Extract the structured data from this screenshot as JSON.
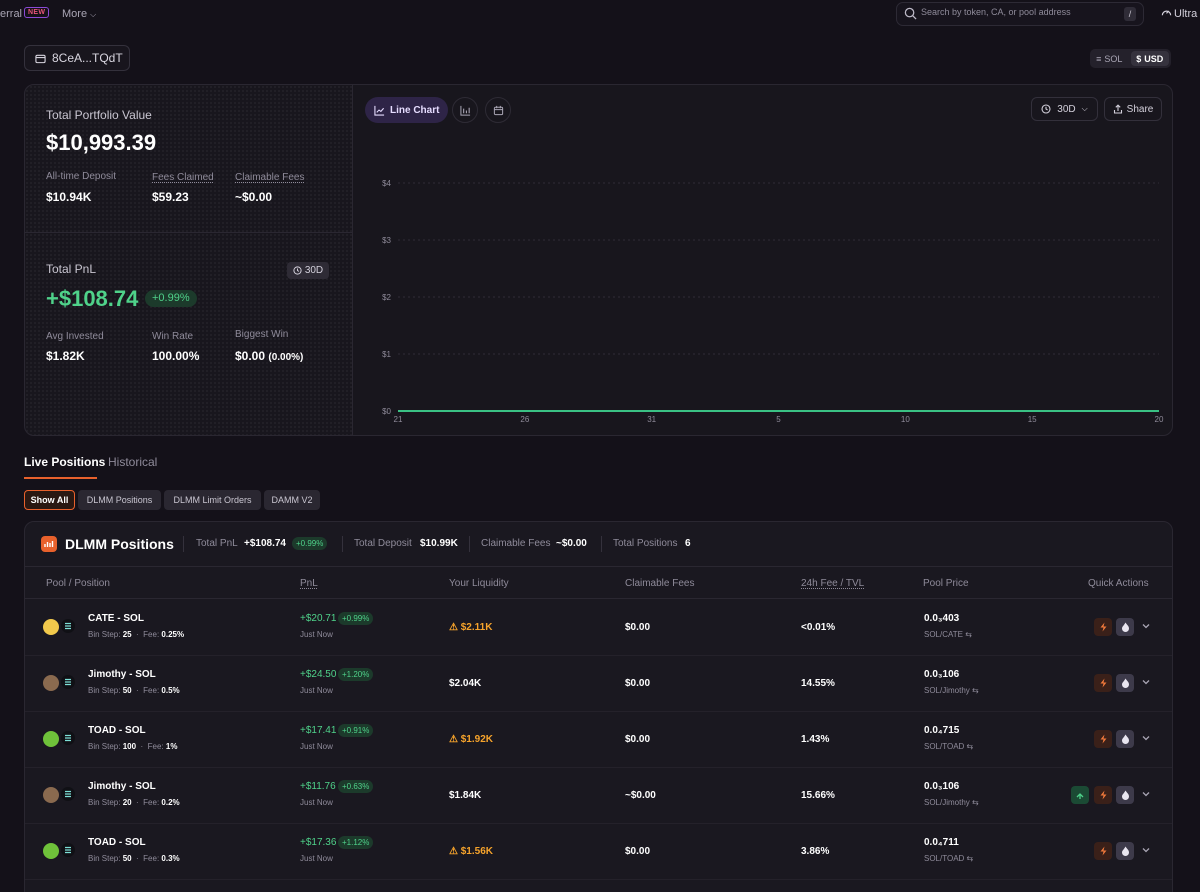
{
  "nav": {
    "referral_label": "erral",
    "new_badge": "NEW",
    "more_label": "More",
    "search_placeholder": "Search by token, CA, or pool address",
    "search_shortcut": "/",
    "ultra_label": "Ultra"
  },
  "wallet": {
    "address": "8CeA...TQdT"
  },
  "currency": {
    "options": [
      "SOL",
      "USD"
    ],
    "selected": "USD"
  },
  "portfolio": {
    "total_value_label": "Total Portfolio Value",
    "total_value": "$10,993.39",
    "deposit_label": "All-time Deposit",
    "deposit": "$10.94K",
    "fees_claimed_label": "Fees Claimed",
    "fees_claimed": "$59.23",
    "claimable_label": "Claimable Fees",
    "claimable": "~$0.00",
    "pnl_label": "Total PnL",
    "pnl_period": "30D",
    "pnl": "+$108.74",
    "pnl_pct": "+0.99%",
    "avg_invested_label": "Avg Invested",
    "avg_invested": "$1.82K",
    "win_rate_label": "Win Rate",
    "win_rate": "100.00%",
    "biggest_win_label": "Biggest Win",
    "biggest_win": "$0.00",
    "biggest_win_pct": "(0.00%)"
  },
  "chart_toolbar": {
    "line_chart_label": "Line Chart",
    "period": "30D",
    "share_label": "Share"
  },
  "chart_data": {
    "type": "line",
    "title": "",
    "xlabel": "",
    "ylabel": "",
    "x": [
      "21",
      "26",
      "31",
      "5",
      "10",
      "15",
      "20"
    ],
    "y_ticks": [
      "$0",
      "$1",
      "$2",
      "$3",
      "$4"
    ],
    "ylim": [
      0,
      4
    ],
    "grid": true,
    "series": [
      {
        "values": [
          0,
          0,
          0,
          0,
          0,
          0,
          0
        ],
        "color": "#3ac184"
      }
    ]
  },
  "tabs": {
    "live": "Live Positions",
    "historical": "Historical"
  },
  "filters": [
    "Show All",
    "DLMM Positions",
    "DLMM Limit Orders",
    "DAMM V2"
  ],
  "dlmm": {
    "title": "DLMM Positions",
    "total_pnl_label": "Total PnL",
    "total_pnl": "+$108.74",
    "total_pnl_pct": "+0.99%",
    "total_deposit_label": "Total Deposit",
    "total_deposit": "$10.99K",
    "claimable_label": "Claimable Fees",
    "claimable": "~$0.00",
    "positions_label": "Total Positions",
    "positions": "6",
    "columns": [
      "Pool / Position",
      "PnL",
      "Your Liquidity",
      "Claimable Fees",
      "24h Fee / TVL",
      "Pool Price",
      "Quick Actions"
    ],
    "rows": [
      {
        "pair": "CATE - SOL",
        "bin_step": "25",
        "fee": "0.25%",
        "pnl": "+$20.71",
        "pnl_pct": "+0.99%",
        "pnl_time": "Just Now",
        "liquidity": "$2.11K",
        "liquidity_warn": true,
        "claimable": "$0.00",
        "fee_tvl": "<0.01%",
        "price": "0.0₃403",
        "price_pair": "SOL/CATE",
        "token_color": "#f2c94c",
        "extra_action": false
      },
      {
        "pair": "Jimothy - SOL",
        "bin_step": "50",
        "fee": "0.5%",
        "pnl": "+$24.50",
        "pnl_pct": "+1.20%",
        "pnl_time": "Just Now",
        "liquidity": "$2.04K",
        "liquidity_warn": false,
        "claimable": "$0.00",
        "fee_tvl": "14.55%",
        "price": "0.0₃106",
        "price_pair": "SOL/Jimothy",
        "token_color": "#8a6a4f",
        "extra_action": false
      },
      {
        "pair": "TOAD - SOL",
        "bin_step": "100",
        "fee": "1%",
        "pnl": "+$17.41",
        "pnl_pct": "+0.91%",
        "pnl_time": "Just Now",
        "liquidity": "$1.92K",
        "liquidity_warn": true,
        "claimable": "$0.00",
        "fee_tvl": "1.43%",
        "price": "0.0₄715",
        "price_pair": "SOL/TOAD",
        "token_color": "#6fc23a",
        "extra_action": false
      },
      {
        "pair": "Jimothy - SOL",
        "bin_step": "20",
        "fee": "0.2%",
        "pnl": "+$11.76",
        "pnl_pct": "+0.63%",
        "pnl_time": "Just Now",
        "liquidity": "$1.84K",
        "liquidity_warn": false,
        "claimable": "~$0.00",
        "fee_tvl": "15.66%",
        "price": "0.0₃106",
        "price_pair": "SOL/Jimothy",
        "token_color": "#8a6a4f",
        "extra_action": true
      },
      {
        "pair": "TOAD - SOL",
        "bin_step": "50",
        "fee": "0.3%",
        "pnl": "+$17.36",
        "pnl_pct": "+1.12%",
        "pnl_time": "Just Now",
        "liquidity": "$1.56K",
        "liquidity_warn": true,
        "claimable": "$0.00",
        "fee_tvl": "3.86%",
        "price": "0.0₄711",
        "price_pair": "SOL/TOAD",
        "token_color": "#6fc23a",
        "extra_action": false
      }
    ],
    "row_labels": {
      "bin_step": "Bin Step:",
      "fee": "Fee:"
    }
  }
}
